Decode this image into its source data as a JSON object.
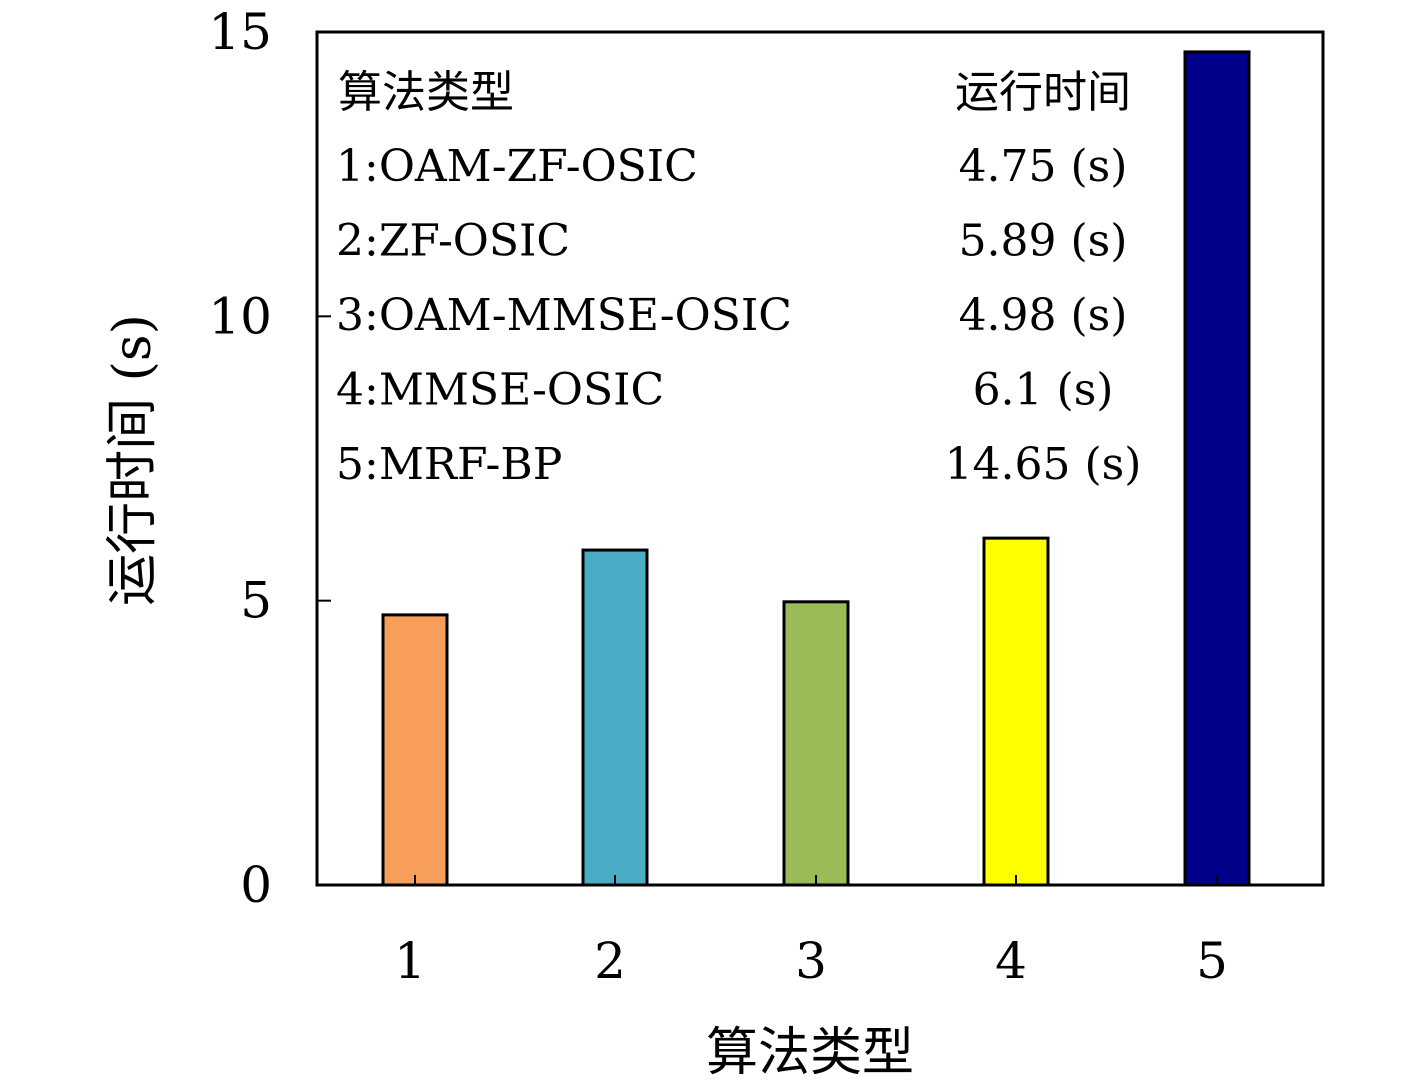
{
  "chart_data": {
    "type": "bar",
    "title": "",
    "xlabel": "算法类型",
    "ylabel": "运行时间 (s)",
    "categories": [
      "1",
      "2",
      "3",
      "4",
      "5"
    ],
    "values": [
      4.75,
      5.89,
      4.98,
      6.1,
      14.65
    ],
    "bar_colors": [
      "#F79F5A",
      "#4BACC6",
      "#9BBB59",
      "#FFFF00",
      "#00008B"
    ],
    "ylim": [
      0,
      15
    ],
    "yticks": [
      0,
      5,
      10,
      15
    ],
    "grid": false,
    "legend_table": {
      "placement": "top-left",
      "headers": {
        "name": "算法类型",
        "time": "运行时间"
      },
      "rows": [
        {
          "name": "1:OAM-ZF-OSIC",
          "time": "4.75 (s)"
        },
        {
          "name": "2:ZF-OSIC",
          "time": "5.89 (s)"
        },
        {
          "name": "3:OAM-MMSE-OSIC",
          "time": "4.98 (s)"
        },
        {
          "name": "4:MMSE-OSIC",
          "time": "6.1 (s)"
        },
        {
          "name": "5:MRF-BP",
          "time": "14.65 (s)"
        }
      ]
    }
  }
}
